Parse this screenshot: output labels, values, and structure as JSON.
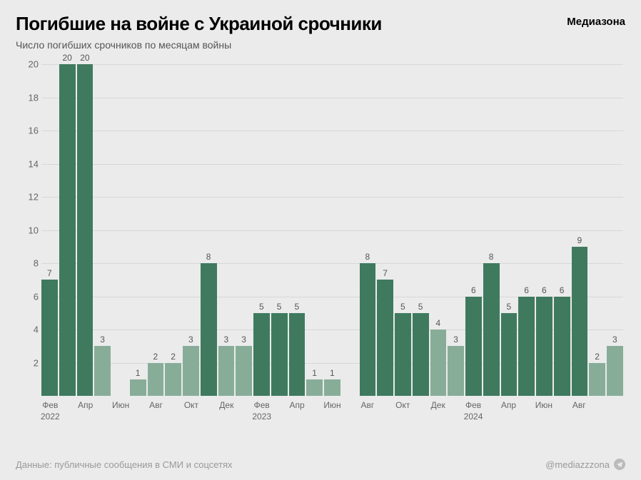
{
  "header": {
    "title": "Погибшие на войне с Украиной срочники",
    "brand": "Медиазона",
    "subtitle": "Число погибших срочников по месяцам войны"
  },
  "chart": {
    "type": "bar",
    "ylim": [
      0,
      20
    ],
    "yticks": [
      2,
      4,
      6,
      8,
      10,
      12,
      14,
      16,
      18,
      20
    ],
    "grid_color": "#d7d7d7",
    "background_color": "#ebebeb",
    "bar_color_full": "#3f7a5f",
    "bar_color_light": "#87ad99",
    "bars": [
      {
        "v": 7,
        "light": false,
        "label": "7"
      },
      {
        "v": 20,
        "light": false,
        "label": "20"
      },
      {
        "v": 20,
        "light": false,
        "label": "20"
      },
      {
        "v": 3,
        "light": true,
        "label": "3"
      },
      {
        "v": 0,
        "light": false,
        "label": ""
      },
      {
        "v": 1,
        "light": true,
        "label": "1"
      },
      {
        "v": 2,
        "light": true,
        "label": "2"
      },
      {
        "v": 2,
        "light": true,
        "label": "2"
      },
      {
        "v": 3,
        "light": true,
        "label": "3"
      },
      {
        "v": 8,
        "light": false,
        "label": "8"
      },
      {
        "v": 3,
        "light": true,
        "label": "3"
      },
      {
        "v": 3,
        "light": true,
        "label": "3"
      },
      {
        "v": 5,
        "light": false,
        "label": "5"
      },
      {
        "v": 5,
        "light": false,
        "label": "5"
      },
      {
        "v": 5,
        "light": false,
        "label": "5"
      },
      {
        "v": 1,
        "light": true,
        "label": "1"
      },
      {
        "v": 1,
        "light": true,
        "label": "1"
      },
      {
        "v": 0,
        "light": false,
        "label": ""
      },
      {
        "v": 8,
        "light": false,
        "label": "8"
      },
      {
        "v": 7,
        "light": false,
        "label": "7"
      },
      {
        "v": 5,
        "light": false,
        "label": "5"
      },
      {
        "v": 5,
        "light": false,
        "label": "5"
      },
      {
        "v": 4,
        "light": true,
        "label": "4"
      },
      {
        "v": 3,
        "light": true,
        "label": "3"
      },
      {
        "v": 6,
        "light": false,
        "label": "6"
      },
      {
        "v": 8,
        "light": false,
        "label": "8"
      },
      {
        "v": 5,
        "light": false,
        "label": "5"
      },
      {
        "v": 6,
        "light": false,
        "label": "6"
      },
      {
        "v": 6,
        "light": false,
        "label": "6"
      },
      {
        "v": 6,
        "light": false,
        "label": "6"
      },
      {
        "v": 9,
        "light": false,
        "label": "9"
      },
      {
        "v": 2,
        "light": true,
        "label": "2"
      },
      {
        "v": 3,
        "light": true,
        "label": "3"
      }
    ],
    "xticks": [
      {
        "idx": 0,
        "label": "Фев\n2022"
      },
      {
        "idx": 2,
        "label": "Апр"
      },
      {
        "idx": 4,
        "label": "Июн"
      },
      {
        "idx": 6,
        "label": "Авг"
      },
      {
        "idx": 8,
        "label": "Окт"
      },
      {
        "idx": 10,
        "label": "Дек"
      },
      {
        "idx": 12,
        "label": "Фев\n2023"
      },
      {
        "idx": 14,
        "label": "Апр"
      },
      {
        "idx": 16,
        "label": "Июн"
      },
      {
        "idx": 18,
        "label": "Авг"
      },
      {
        "idx": 20,
        "label": "Окт"
      },
      {
        "idx": 22,
        "label": "Дек"
      },
      {
        "idx": 24,
        "label": "Фев\n2024"
      },
      {
        "idx": 26,
        "label": "Апр"
      },
      {
        "idx": 28,
        "label": "Июн"
      },
      {
        "idx": 30,
        "label": "Авг"
      }
    ]
  },
  "footer": {
    "source": "Данные: публичные сообщения в СМИ и соцсетях",
    "handle": "@mediazzzona"
  }
}
